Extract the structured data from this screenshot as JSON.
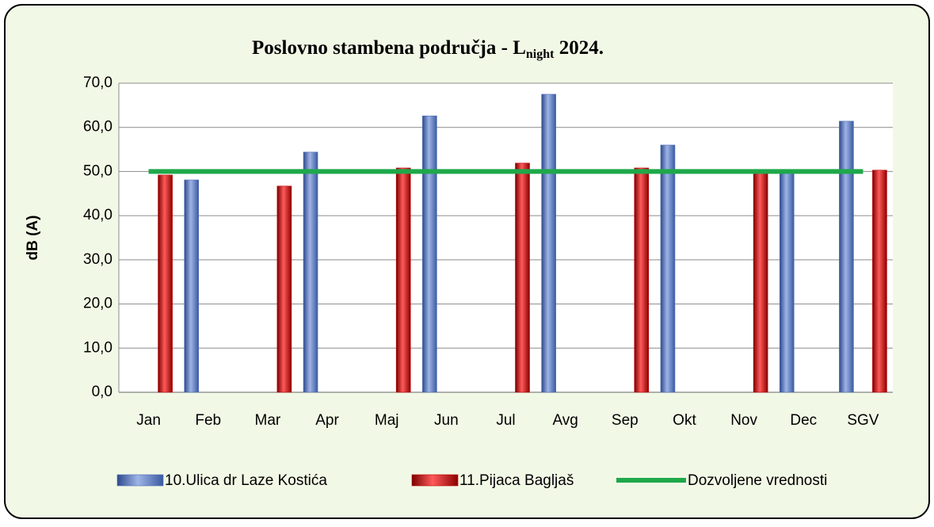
{
  "chart_data": {
    "type": "bar",
    "title": {
      "prefix": "Poslovno stambena područja - L",
      "sub": "night",
      "suffix": " 2024."
    },
    "ylabel": "dB (A)",
    "categories": [
      "Jan",
      "Feb",
      "Mar",
      "Apr",
      "Maj",
      "Jun",
      "Jul",
      "Avg",
      "Sep",
      "Okt",
      "Nov",
      "Dec",
      "SGV"
    ],
    "series": [
      {
        "name": "10.Ulica dr Laze Kostića",
        "color": "#4f6fb8",
        "values": [
          null,
          48.1,
          null,
          54.4,
          null,
          62.6,
          null,
          67.5,
          null,
          56.0,
          null,
          50.1,
          61.4
        ]
      },
      {
        "name": "11.Pijaca Bagljaš",
        "color": "#c00000",
        "values": [
          49.2,
          null,
          46.7,
          null,
          50.8,
          null,
          51.9,
          null,
          50.8,
          null,
          49.7,
          null,
          50.3
        ]
      },
      {
        "name": "Dozvoljene vrednosti",
        "color": "#1fa84a",
        "type": "line",
        "values": [
          50,
          50,
          50,
          50,
          50,
          50,
          50,
          50,
          50,
          50,
          50,
          50,
          50
        ]
      }
    ],
    "ylim": [
      0,
      70
    ],
    "yticks": [
      {
        "value": 0,
        "label": "0,0"
      },
      {
        "value": 10,
        "label": "10,0"
      },
      {
        "value": 20,
        "label": "20,0"
      },
      {
        "value": 30,
        "label": "30,0"
      },
      {
        "value": 40,
        "label": "40,0"
      },
      {
        "value": 50,
        "label": "50,0"
      },
      {
        "value": 60,
        "label": "60,0"
      },
      {
        "value": 70,
        "label": "70,0"
      }
    ],
    "grid": true,
    "legend": "bottom"
  }
}
